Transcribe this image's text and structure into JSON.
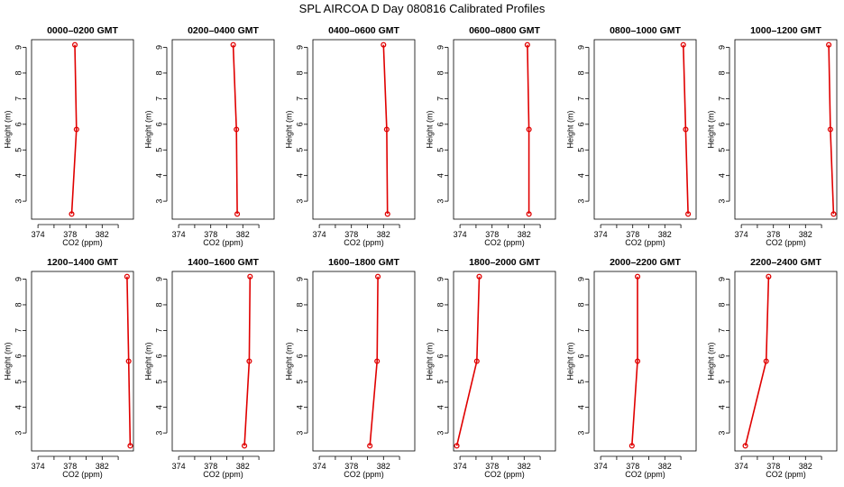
{
  "page": {
    "title": "SPL AIRCOA D  Day 080816  Calibrated Profiles"
  },
  "chart_data": [
    {
      "type": "line",
      "title": "0000–0200 GMT",
      "xlabel": "CO2 (ppm)",
      "ylabel": "Height (m)",
      "xlim": [
        373.2,
        385.9
      ],
      "ylim": [
        2.3,
        9.3
      ],
      "xticks": [
        374,
        376,
        378,
        380,
        382,
        384
      ],
      "xtick_labels": [
        "374",
        "",
        "378",
        "",
        "382",
        ""
      ],
      "yticks": [
        3,
        4,
        5,
        6,
        7,
        8,
        9
      ],
      "x": [
        378.6,
        378.8,
        378.2
      ],
      "y": [
        9.1,
        5.8,
        2.5
      ]
    },
    {
      "type": "line",
      "title": "0200–0400 GMT",
      "xlabel": "CO2 (ppm)",
      "ylabel": "Height (m)",
      "xlim": [
        373.2,
        385.9
      ],
      "ylim": [
        2.3,
        9.3
      ],
      "xticks": [
        374,
        376,
        378,
        380,
        382,
        384
      ],
      "xtick_labels": [
        "374",
        "",
        "378",
        "",
        "382",
        ""
      ],
      "yticks": [
        3,
        4,
        5,
        6,
        7,
        8,
        9
      ],
      "x": [
        380.8,
        381.2,
        381.3
      ],
      "y": [
        9.1,
        5.8,
        2.5
      ]
    },
    {
      "type": "line",
      "title": "0400–0600 GMT",
      "xlabel": "CO2 (ppm)",
      "ylabel": "Height (m)",
      "xlim": [
        373.2,
        385.9
      ],
      "ylim": [
        2.3,
        9.3
      ],
      "xticks": [
        374,
        376,
        378,
        380,
        382,
        384
      ],
      "xtick_labels": [
        "374",
        "",
        "378",
        "",
        "382",
        ""
      ],
      "yticks": [
        3,
        4,
        5,
        6,
        7,
        8,
        9
      ],
      "x": [
        382.0,
        382.4,
        382.5
      ],
      "y": [
        9.1,
        5.8,
        2.5
      ]
    },
    {
      "type": "line",
      "title": "0600–0800 GMT",
      "xlabel": "CO2 (ppm)",
      "ylabel": "Height (m)",
      "xlim": [
        373.2,
        385.9
      ],
      "ylim": [
        2.3,
        9.3
      ],
      "xticks": [
        374,
        376,
        378,
        380,
        382,
        384
      ],
      "xtick_labels": [
        "374",
        "",
        "378",
        "",
        "382",
        ""
      ],
      "yticks": [
        3,
        4,
        5,
        6,
        7,
        8,
        9
      ],
      "x": [
        382.4,
        382.6,
        382.6
      ],
      "y": [
        9.1,
        5.8,
        2.5
      ]
    },
    {
      "type": "line",
      "title": "0800–1000 GMT",
      "xlabel": "CO2 (ppm)",
      "ylabel": "Height (m)",
      "xlim": [
        373.2,
        385.9
      ],
      "ylim": [
        2.3,
        9.3
      ],
      "xticks": [
        374,
        376,
        378,
        380,
        382,
        384
      ],
      "xtick_labels": [
        "374",
        "",
        "378",
        "",
        "382",
        ""
      ],
      "yticks": [
        3,
        4,
        5,
        6,
        7,
        8,
        9
      ],
      "x": [
        384.3,
        384.6,
        384.9
      ],
      "y": [
        9.1,
        5.8,
        2.5
      ]
    },
    {
      "type": "line",
      "title": "1000–1200 GMT",
      "xlabel": "CO2 (ppm)",
      "ylabel": "Height (m)",
      "xlim": [
        373.2,
        385.9
      ],
      "ylim": [
        2.3,
        9.3
      ],
      "xticks": [
        374,
        376,
        378,
        380,
        382,
        384
      ],
      "xtick_labels": [
        "374",
        "",
        "378",
        "",
        "382",
        ""
      ],
      "yticks": [
        3,
        4,
        5,
        6,
        7,
        8,
        9
      ],
      "x": [
        384.9,
        385.1,
        385.5
      ],
      "y": [
        9.1,
        5.8,
        2.5
      ]
    },
    {
      "type": "line",
      "title": "1200–1400 GMT",
      "xlabel": "CO2 (ppm)",
      "ylabel": "Height (m)",
      "xlim": [
        373.2,
        385.9
      ],
      "ylim": [
        2.3,
        9.3
      ],
      "xticks": [
        374,
        376,
        378,
        380,
        382,
        384
      ],
      "xtick_labels": [
        "374",
        "",
        "378",
        "",
        "382",
        ""
      ],
      "yticks": [
        3,
        4,
        5,
        6,
        7,
        8,
        9
      ],
      "x": [
        385.1,
        385.3,
        385.5
      ],
      "y": [
        9.1,
        5.8,
        2.5
      ]
    },
    {
      "type": "line",
      "title": "1400–1600 GMT",
      "xlabel": "CO2 (ppm)",
      "ylabel": "Height (m)",
      "xlim": [
        373.2,
        385.9
      ],
      "ylim": [
        2.3,
        9.3
      ],
      "xticks": [
        374,
        376,
        378,
        380,
        382,
        384
      ],
      "xtick_labels": [
        "374",
        "",
        "378",
        "",
        "382",
        ""
      ],
      "yticks": [
        3,
        4,
        5,
        6,
        7,
        8,
        9
      ],
      "x": [
        382.9,
        382.8,
        382.2
      ],
      "y": [
        9.1,
        5.8,
        2.5
      ]
    },
    {
      "type": "line",
      "title": "1600–1800 GMT",
      "xlabel": "CO2 (ppm)",
      "ylabel": "Height (m)",
      "xlim": [
        373.2,
        385.9
      ],
      "ylim": [
        2.3,
        9.3
      ],
      "xticks": [
        374,
        376,
        378,
        380,
        382,
        384
      ],
      "xtick_labels": [
        "374",
        "",
        "378",
        "",
        "382",
        ""
      ],
      "yticks": [
        3,
        4,
        5,
        6,
        7,
        8,
        9
      ],
      "x": [
        381.3,
        381.2,
        380.3
      ],
      "y": [
        9.1,
        5.8,
        2.5
      ]
    },
    {
      "type": "line",
      "title": "1800–2000 GMT",
      "xlabel": "CO2 (ppm)",
      "ylabel": "Height (m)",
      "xlim": [
        373.2,
        385.9
      ],
      "ylim": [
        2.3,
        9.3
      ],
      "xticks": [
        374,
        376,
        378,
        380,
        382,
        384
      ],
      "xtick_labels": [
        "374",
        "",
        "378",
        "",
        "382",
        ""
      ],
      "yticks": [
        3,
        4,
        5,
        6,
        7,
        8,
        9
      ],
      "x": [
        376.4,
        376.1,
        373.6
      ],
      "y": [
        9.1,
        5.8,
        2.5
      ]
    },
    {
      "type": "line",
      "title": "2000–2200 GMT",
      "xlabel": "CO2 (ppm)",
      "ylabel": "Height (m)",
      "xlim": [
        373.2,
        385.9
      ],
      "ylim": [
        2.3,
        9.3
      ],
      "xticks": [
        374,
        376,
        378,
        380,
        382,
        384
      ],
      "xtick_labels": [
        "374",
        "",
        "378",
        "",
        "382",
        ""
      ],
      "yticks": [
        3,
        4,
        5,
        6,
        7,
        8,
        9
      ],
      "x": [
        378.6,
        378.6,
        377.9
      ],
      "y": [
        9.1,
        5.8,
        2.5
      ]
    },
    {
      "type": "line",
      "title": "2200–2400 GMT",
      "xlabel": "CO2 (ppm)",
      "ylabel": "Height (m)",
      "xlim": [
        373.2,
        385.9
      ],
      "ylim": [
        2.3,
        9.3
      ],
      "xticks": [
        374,
        376,
        378,
        380,
        382,
        384
      ],
      "xtick_labels": [
        "374",
        "",
        "378",
        "",
        "382",
        ""
      ],
      "yticks": [
        3,
        4,
        5,
        6,
        7,
        8,
        9
      ],
      "x": [
        377.4,
        377.1,
        374.5
      ],
      "y": [
        9.1,
        5.8,
        2.5
      ]
    }
  ]
}
